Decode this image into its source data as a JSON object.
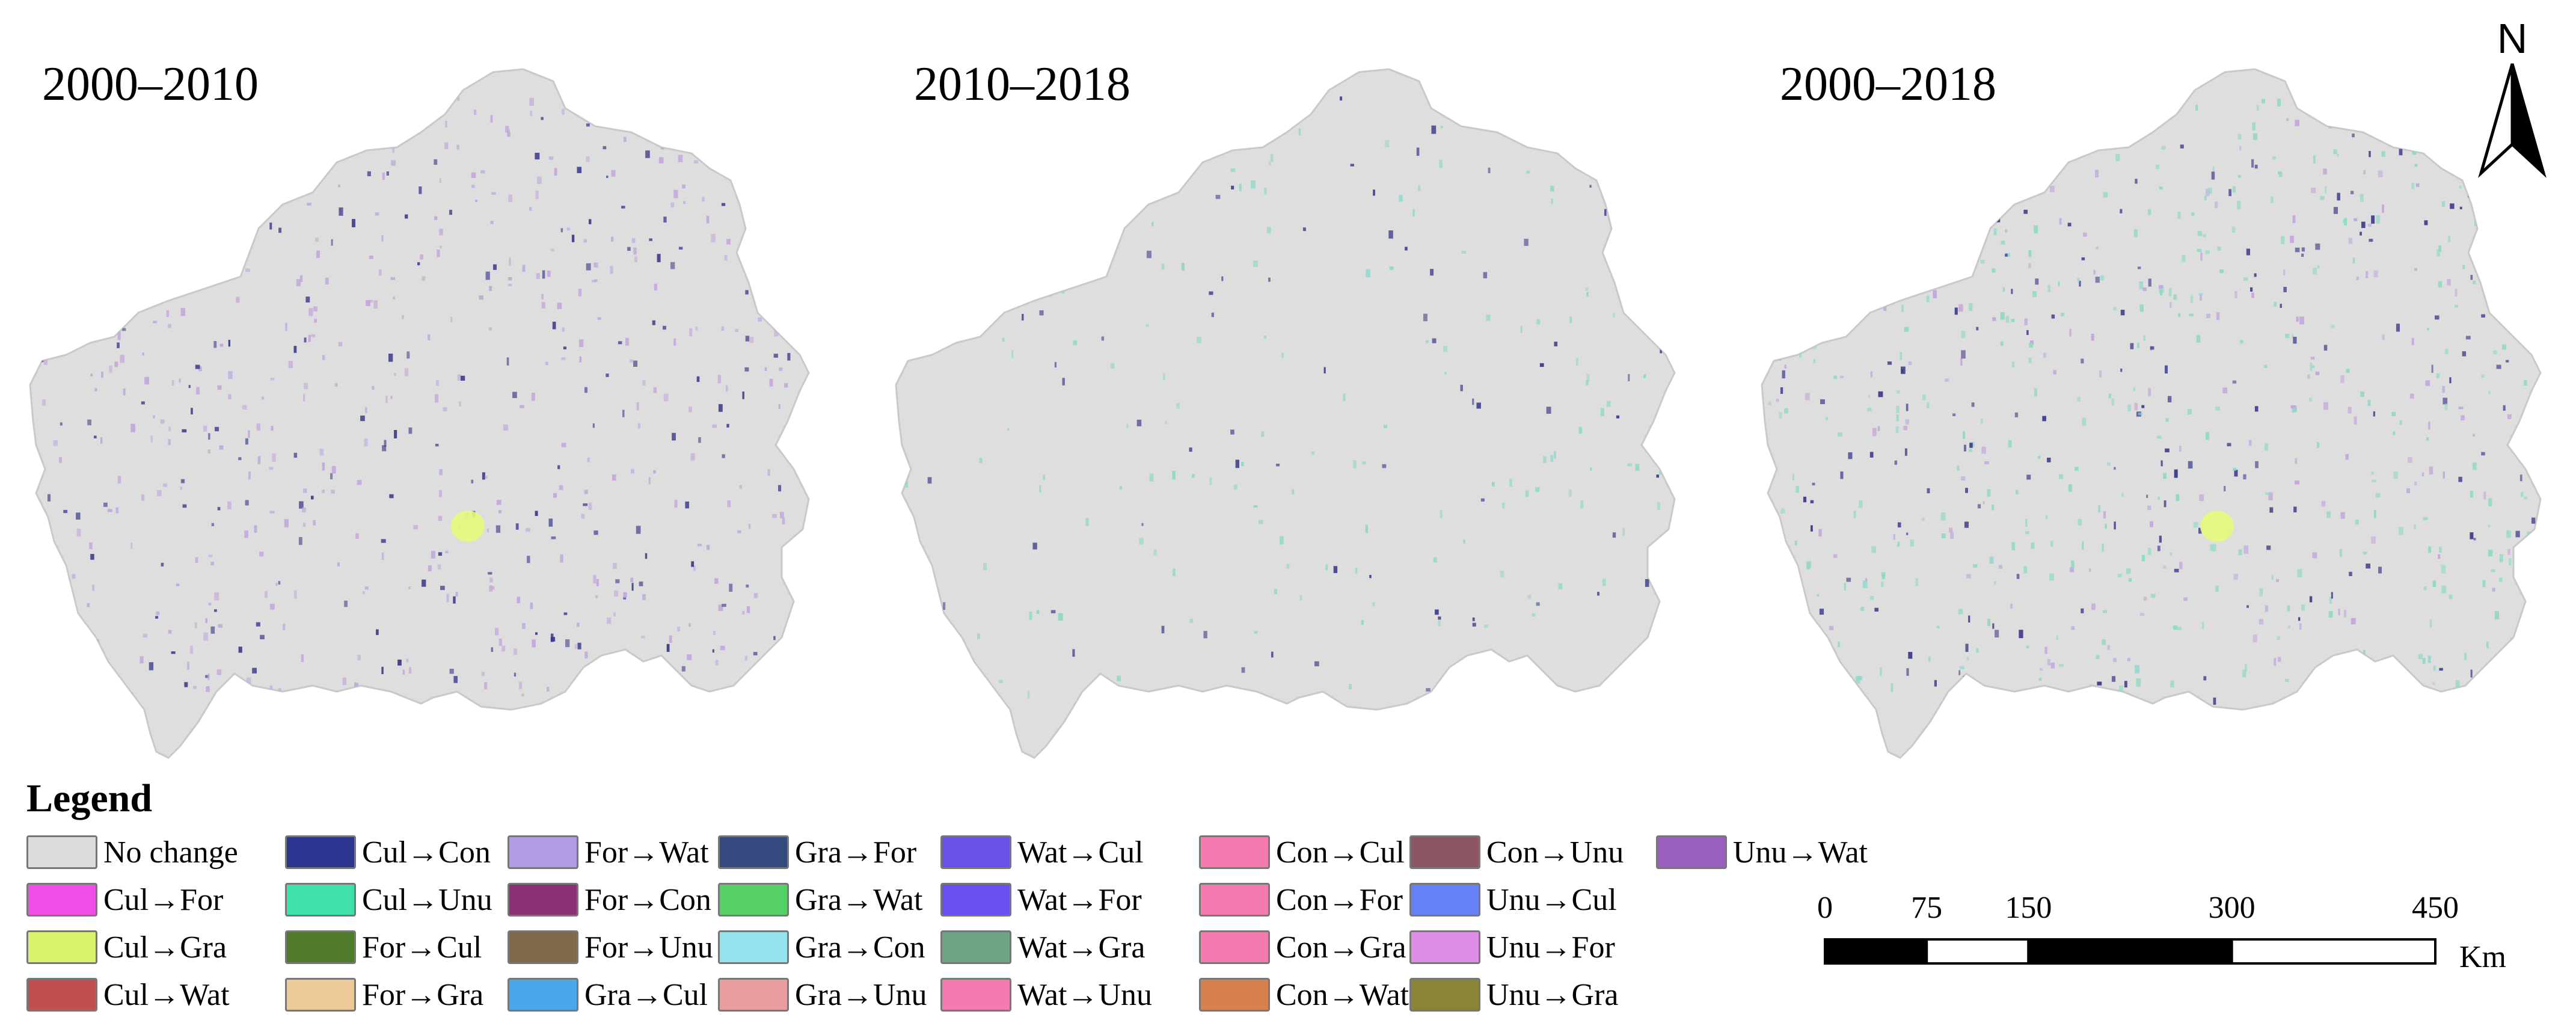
{
  "maps": [
    {
      "id": "map-2000-2010",
      "title": "2000–2010",
      "hotspot": "#e6f97a"
    },
    {
      "id": "map-2010-2018",
      "title": "2010–2018",
      "hotspot": null
    },
    {
      "id": "map-2000-2018",
      "title": "2000–2018",
      "hotspot": "#e6f97a"
    }
  ],
  "legend": {
    "title": "Legend",
    "items": [
      {
        "label": "No change",
        "color": "#dcdcdc"
      },
      {
        "label": "Cul→Con",
        "color": "#2e3590"
      },
      {
        "label": "For→Wat",
        "color": "#b39ce6"
      },
      {
        "label": "Gra→For",
        "color": "#354a7e"
      },
      {
        "label": "Wat→Cul",
        "color": "#6a4fe8"
      },
      {
        "label": "Con→Cul",
        "color": "#f47bb0"
      },
      {
        "label": "Con→Unu",
        "color": "#8e5562"
      },
      {
        "label": "Unu→Wat",
        "color": "#9b5fc0"
      },
      {
        "label": "Cul→For",
        "color": "#f04ce8"
      },
      {
        "label": "Cul→Unu",
        "color": "#3fe0aa"
      },
      {
        "label": "For→Con",
        "color": "#8b2f72"
      },
      {
        "label": "Gra→Wat",
        "color": "#55d064"
      },
      {
        "label": "Wat→For",
        "color": "#6a4ff0"
      },
      {
        "label": "Con→For",
        "color": "#f47bb0"
      },
      {
        "label": "Unu→Cul",
        "color": "#6680f5"
      },
      {
        "label": "Cul→Gra",
        "color": "#d8f56a"
      },
      {
        "label": "For→Cul",
        "color": "#4f7a2a"
      },
      {
        "label": "For→Unu",
        "color": "#806848"
      },
      {
        "label": "Gra→Con",
        "color": "#92e2f0"
      },
      {
        "label": "Wat→Gra",
        "color": "#6fa383"
      },
      {
        "label": "Con→Gra",
        "color": "#f47bb0"
      },
      {
        "label": "Unu→For",
        "color": "#e08de8"
      },
      {
        "label": "Cul→Wat",
        "color": "#c0504d"
      },
      {
        "label": "For→Gra",
        "color": "#ecc996"
      },
      {
        "label": "Gra→Cul",
        "color": "#4aa8ea"
      },
      {
        "label": "Gra→Unu",
        "color": "#e89e9e"
      },
      {
        "label": "Wat→Unu",
        "color": "#f47bb0"
      },
      {
        "label": "Con→Wat",
        "color": "#d9814c"
      },
      {
        "label": "Unu→Gra",
        "color": "#8a8436"
      }
    ]
  },
  "north_arrow": {
    "label": "N"
  },
  "scale_bar": {
    "ticks": [
      "0",
      "75",
      "150",
      "300",
      "450"
    ],
    "tick_values": [
      0,
      75,
      150,
      300,
      450
    ],
    "unit": "Km"
  },
  "colors": {
    "region_fill": "#dedede",
    "region_stroke": "#c9c9c9",
    "change_primary": "#3b3a8a",
    "change_secondary": "#c3a6dc",
    "change_teal": "#8fd8c8"
  }
}
